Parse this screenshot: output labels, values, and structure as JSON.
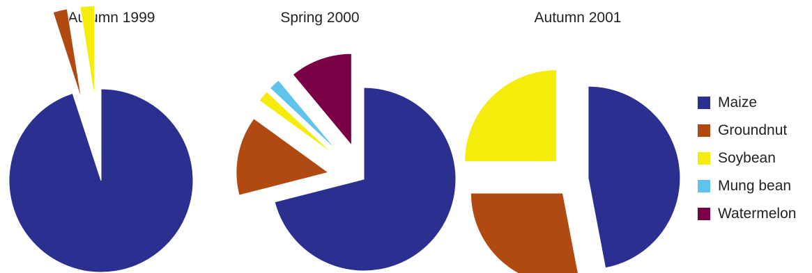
{
  "chart_data": [
    {
      "type": "pie",
      "title": "Autumn 1999",
      "slices": [
        {
          "label": "Maize",
          "value": 95
        },
        {
          "label": "Groundnut",
          "value": 2.5
        },
        {
          "label": "Soybean",
          "value": 2.5
        }
      ]
    },
    {
      "type": "pie",
      "title": "Spring 2000",
      "slices": [
        {
          "label": "Maize",
          "value": 71
        },
        {
          "label": "Groundnut",
          "value": 14
        },
        {
          "label": "Soybean",
          "value": 2
        },
        {
          "label": "Mung bean",
          "value": 2
        },
        {
          "label": "Watermelon",
          "value": 11
        }
      ]
    },
    {
      "type": "pie",
      "title": "Autumn 2001",
      "slices": [
        {
          "label": "Maize",
          "value": 47
        },
        {
          "label": "Groundnut",
          "value": 28
        },
        {
          "label": "Soybean",
          "value": 25
        }
      ]
    }
  ],
  "legend": {
    "position": "right",
    "items": [
      {
        "label": "Maize",
        "color": "#2b2f8f"
      },
      {
        "label": "Groundnut",
        "color": "#b04a10"
      },
      {
        "label": "Soybean",
        "color": "#f5ec0c"
      },
      {
        "label": "Mung bean",
        "color": "#5fc4ec"
      },
      {
        "label": "Watermelon",
        "color": "#7a0046"
      }
    ]
  }
}
